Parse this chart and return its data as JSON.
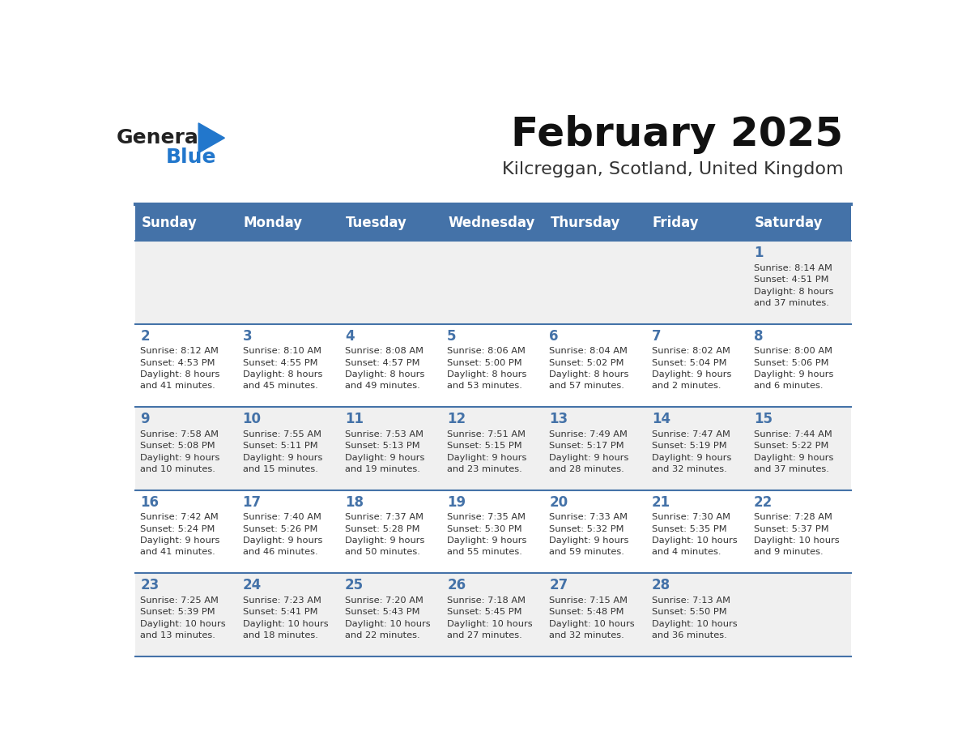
{
  "title": "February 2025",
  "subtitle": "Kilcreggan, Scotland, United Kingdom",
  "header_bg": "#4472a8",
  "header_text": "#ffffff",
  "row_bg_odd": "#f0f0f0",
  "row_bg_even": "#ffffff",
  "day_number_color": "#4472a8",
  "info_text_color": "#333333",
  "separator_color": "#4472a8",
  "days_of_week": [
    "Sunday",
    "Monday",
    "Tuesday",
    "Wednesday",
    "Thursday",
    "Friday",
    "Saturday"
  ],
  "weeks": [
    [
      {
        "day": null,
        "info": ""
      },
      {
        "day": null,
        "info": ""
      },
      {
        "day": null,
        "info": ""
      },
      {
        "day": null,
        "info": ""
      },
      {
        "day": null,
        "info": ""
      },
      {
        "day": null,
        "info": ""
      },
      {
        "day": 1,
        "info": "Sunrise: 8:14 AM\nSunset: 4:51 PM\nDaylight: 8 hours\nand 37 minutes."
      }
    ],
    [
      {
        "day": 2,
        "info": "Sunrise: 8:12 AM\nSunset: 4:53 PM\nDaylight: 8 hours\nand 41 minutes."
      },
      {
        "day": 3,
        "info": "Sunrise: 8:10 AM\nSunset: 4:55 PM\nDaylight: 8 hours\nand 45 minutes."
      },
      {
        "day": 4,
        "info": "Sunrise: 8:08 AM\nSunset: 4:57 PM\nDaylight: 8 hours\nand 49 minutes."
      },
      {
        "day": 5,
        "info": "Sunrise: 8:06 AM\nSunset: 5:00 PM\nDaylight: 8 hours\nand 53 minutes."
      },
      {
        "day": 6,
        "info": "Sunrise: 8:04 AM\nSunset: 5:02 PM\nDaylight: 8 hours\nand 57 minutes."
      },
      {
        "day": 7,
        "info": "Sunrise: 8:02 AM\nSunset: 5:04 PM\nDaylight: 9 hours\nand 2 minutes."
      },
      {
        "day": 8,
        "info": "Sunrise: 8:00 AM\nSunset: 5:06 PM\nDaylight: 9 hours\nand 6 minutes."
      }
    ],
    [
      {
        "day": 9,
        "info": "Sunrise: 7:58 AM\nSunset: 5:08 PM\nDaylight: 9 hours\nand 10 minutes."
      },
      {
        "day": 10,
        "info": "Sunrise: 7:55 AM\nSunset: 5:11 PM\nDaylight: 9 hours\nand 15 minutes."
      },
      {
        "day": 11,
        "info": "Sunrise: 7:53 AM\nSunset: 5:13 PM\nDaylight: 9 hours\nand 19 minutes."
      },
      {
        "day": 12,
        "info": "Sunrise: 7:51 AM\nSunset: 5:15 PM\nDaylight: 9 hours\nand 23 minutes."
      },
      {
        "day": 13,
        "info": "Sunrise: 7:49 AM\nSunset: 5:17 PM\nDaylight: 9 hours\nand 28 minutes."
      },
      {
        "day": 14,
        "info": "Sunrise: 7:47 AM\nSunset: 5:19 PM\nDaylight: 9 hours\nand 32 minutes."
      },
      {
        "day": 15,
        "info": "Sunrise: 7:44 AM\nSunset: 5:22 PM\nDaylight: 9 hours\nand 37 minutes."
      }
    ],
    [
      {
        "day": 16,
        "info": "Sunrise: 7:42 AM\nSunset: 5:24 PM\nDaylight: 9 hours\nand 41 minutes."
      },
      {
        "day": 17,
        "info": "Sunrise: 7:40 AM\nSunset: 5:26 PM\nDaylight: 9 hours\nand 46 minutes."
      },
      {
        "day": 18,
        "info": "Sunrise: 7:37 AM\nSunset: 5:28 PM\nDaylight: 9 hours\nand 50 minutes."
      },
      {
        "day": 19,
        "info": "Sunrise: 7:35 AM\nSunset: 5:30 PM\nDaylight: 9 hours\nand 55 minutes."
      },
      {
        "day": 20,
        "info": "Sunrise: 7:33 AM\nSunset: 5:32 PM\nDaylight: 9 hours\nand 59 minutes."
      },
      {
        "day": 21,
        "info": "Sunrise: 7:30 AM\nSunset: 5:35 PM\nDaylight: 10 hours\nand 4 minutes."
      },
      {
        "day": 22,
        "info": "Sunrise: 7:28 AM\nSunset: 5:37 PM\nDaylight: 10 hours\nand 9 minutes."
      }
    ],
    [
      {
        "day": 23,
        "info": "Sunrise: 7:25 AM\nSunset: 5:39 PM\nDaylight: 10 hours\nand 13 minutes."
      },
      {
        "day": 24,
        "info": "Sunrise: 7:23 AM\nSunset: 5:41 PM\nDaylight: 10 hours\nand 18 minutes."
      },
      {
        "day": 25,
        "info": "Sunrise: 7:20 AM\nSunset: 5:43 PM\nDaylight: 10 hours\nand 22 minutes."
      },
      {
        "day": 26,
        "info": "Sunrise: 7:18 AM\nSunset: 5:45 PM\nDaylight: 10 hours\nand 27 minutes."
      },
      {
        "day": 27,
        "info": "Sunrise: 7:15 AM\nSunset: 5:48 PM\nDaylight: 10 hours\nand 32 minutes."
      },
      {
        "day": 28,
        "info": "Sunrise: 7:13 AM\nSunset: 5:50 PM\nDaylight: 10 hours\nand 36 minutes."
      },
      {
        "day": null,
        "info": ""
      }
    ]
  ],
  "logo_text_general": "General",
  "logo_text_blue": "Blue",
  "logo_general_color": "#222222",
  "logo_blue_color": "#2277cc",
  "logo_triangle_color": "#2277cc"
}
